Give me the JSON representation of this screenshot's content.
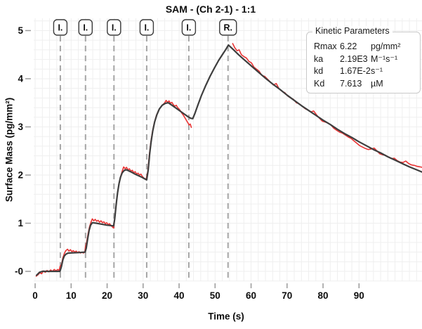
{
  "title": "SAM -  (Ch 2-1) - 1:1",
  "kinetic_parameters": {
    "title": "Kinetic Parameters",
    "rows": [
      {
        "label": "Rmax",
        "value": "6.22",
        "unit": "pg/mm²"
      },
      {
        "label": "ka",
        "value": "2.19E3",
        "unit": "M⁻¹s⁻¹"
      },
      {
        "label": "kd",
        "value": "1.67E-2",
        "unit": "s⁻¹"
      },
      {
        "label": "Kd",
        "value": "7.613",
        "unit": "µM"
      }
    ]
  },
  "chart_data": {
    "type": "line",
    "title": "SAM -  (Ch 2-1) - 1:1",
    "xlabel": "Time (s)",
    "ylabel": "Surface Mass (pg/mm²)",
    "xlim": [
      -0.4,
      107.5
    ],
    "ylim": [
      -0.204,
      5.255
    ],
    "x_ticks": [
      0,
      10,
      20,
      30,
      40,
      50,
      60,
      70,
      80,
      90
    ],
    "y_ticks": [
      {
        "value": 0,
        "label": "-0"
      },
      {
        "value": 1,
        "label": "1"
      },
      {
        "value": 2,
        "label": "2"
      },
      {
        "value": 3,
        "label": "3"
      },
      {
        "value": 4,
        "label": "4"
      },
      {
        "value": 5,
        "label": "5"
      }
    ],
    "grid": {
      "x_step": 2,
      "y_step": 0.2,
      "color": "#efefef",
      "on": true
    },
    "events": [
      {
        "label": "I.",
        "time": 7.0
      },
      {
        "label": "I.",
        "time": 14.0
      },
      {
        "label": "I.",
        "time": 21.9
      },
      {
        "label": "I.",
        "time": 31.0
      },
      {
        "label": "I.",
        "time": 42.7
      },
      {
        "label": "R.",
        "time": 53.6
      }
    ],
    "event_line_color": "#a6a6a6",
    "series": [
      {
        "name": "measured",
        "color": "#e93434",
        "width": 1.6,
        "segments": [
          [
            [
              0.3,
              -0.1
            ],
            [
              0.8,
              -0.07
            ],
            [
              1.3,
              -0.03
            ],
            [
              1.8,
              -0.05
            ],
            [
              2.3,
              0.01
            ],
            [
              2.8,
              -0.02
            ],
            [
              3.3,
              0.02
            ],
            [
              3.8,
              -0.01
            ],
            [
              4.3,
              0.03
            ],
            [
              4.8,
              0.0
            ],
            [
              5.3,
              0.04
            ],
            [
              5.8,
              0.01
            ],
            [
              6.3,
              0.04
            ],
            [
              6.7,
              0.02
            ],
            [
              6.9,
              0.1
            ],
            [
              7.3,
              0.14
            ],
            [
              7.7,
              0.28
            ],
            [
              8.1,
              0.37
            ],
            [
              8.5,
              0.43
            ],
            [
              9.0,
              0.46
            ],
            [
              9.4,
              0.42
            ],
            [
              9.8,
              0.45
            ],
            [
              10.2,
              0.41
            ],
            [
              10.6,
              0.43
            ],
            [
              11.0,
              0.4
            ],
            [
              11.4,
              0.42
            ],
            [
              11.8,
              0.39
            ],
            [
              12.2,
              0.41
            ],
            [
              12.6,
              0.38
            ],
            [
              13.0,
              0.4
            ],
            [
              13.4,
              0.38
            ],
            [
              13.8,
              0.41
            ],
            [
              14.0,
              0.52
            ],
            [
              14.3,
              0.6
            ],
            [
              14.7,
              0.78
            ],
            [
              15.1,
              0.92
            ],
            [
              15.5,
              1.02
            ],
            [
              15.9,
              1.09
            ],
            [
              16.3,
              1.05
            ],
            [
              16.7,
              1.08
            ],
            [
              17.1,
              1.04
            ],
            [
              17.5,
              1.06
            ],
            [
              17.9,
              1.02
            ],
            [
              18.3,
              1.05
            ],
            [
              18.7,
              1.01
            ],
            [
              19.1,
              1.03
            ],
            [
              19.5,
              0.99
            ],
            [
              19.9,
              1.01
            ],
            [
              20.3,
              0.97
            ],
            [
              20.7,
              0.99
            ],
            [
              21.1,
              0.95
            ],
            [
              21.5,
              0.92
            ],
            [
              21.8,
              0.9
            ],
            [
              21.95,
              0.98
            ],
            [
              22.2,
              1.15
            ],
            [
              22.6,
              1.45
            ],
            [
              23.0,
              1.68
            ],
            [
              23.4,
              1.86
            ],
            [
              23.8,
              1.98
            ],
            [
              24.2,
              2.08
            ],
            [
              24.6,
              2.17
            ],
            [
              25.0,
              2.13
            ],
            [
              25.4,
              2.16
            ],
            [
              25.8,
              2.11
            ],
            [
              26.2,
              2.13
            ],
            [
              26.6,
              2.08
            ],
            [
              27.0,
              2.1
            ],
            [
              27.4,
              2.05
            ],
            [
              27.8,
              2.07
            ],
            [
              28.2,
              2.02
            ],
            [
              28.6,
              2.04
            ],
            [
              29.0,
              2.0
            ],
            [
              29.4,
              2.02
            ],
            [
              29.8,
              1.97
            ],
            [
              30.2,
              1.94
            ],
            [
              30.6,
              1.91
            ],
            [
              30.9,
              1.93
            ],
            [
              31.3,
              2.08
            ],
            [
              31.7,
              2.4
            ],
            [
              32.1,
              2.66
            ],
            [
              32.6,
              2.9
            ],
            [
              33.1,
              3.08
            ],
            [
              33.7,
              3.24
            ],
            [
              34.4,
              3.36
            ],
            [
              35.2,
              3.44
            ],
            [
              36.0,
              3.5
            ],
            [
              36.4,
              3.55
            ],
            [
              36.8,
              3.51
            ],
            [
              37.2,
              3.54
            ],
            [
              37.6,
              3.49
            ],
            [
              38.0,
              3.51
            ],
            [
              38.4,
              3.46
            ],
            [
              38.8,
              3.43
            ],
            [
              39.2,
              3.45
            ],
            [
              39.6,
              3.4
            ],
            [
              40.0,
              3.37
            ],
            [
              40.4,
              3.33
            ],
            [
              40.8,
              3.28
            ],
            [
              41.2,
              3.24
            ],
            [
              41.6,
              3.19
            ],
            [
              42.0,
              3.14
            ],
            [
              42.4,
              3.09
            ],
            [
              42.8,
              3.04
            ],
            [
              43.1,
              3.06
            ],
            [
              43.4,
              2.99
            ]
          ],
          [
            [
              54.9,
              4.73
            ],
            [
              55.5,
              4.64
            ],
            [
              56.1,
              4.58
            ],
            [
              56.7,
              4.6
            ],
            [
              57.3,
              4.5
            ],
            [
              58.0,
              4.46
            ],
            [
              58.7,
              4.43
            ],
            [
              59.4,
              4.36
            ],
            [
              60.1,
              4.33
            ],
            [
              60.8,
              4.24
            ],
            [
              61.5,
              4.2
            ],
            [
              62.2,
              4.16
            ],
            [
              63.0,
              4.07
            ],
            [
              63.8,
              4.05
            ],
            [
              64.6,
              3.99
            ],
            [
              65.4,
              3.93
            ],
            [
              66.2,
              3.87
            ],
            [
              67.0,
              3.9
            ],
            [
              67.8,
              3.79
            ],
            [
              68.6,
              3.74
            ],
            [
              69.4,
              3.71
            ],
            [
              70.2,
              3.64
            ],
            [
              71.0,
              3.6
            ],
            [
              71.8,
              3.57
            ],
            [
              72.6,
              3.5
            ],
            [
              73.4,
              3.48
            ],
            [
              74.2,
              3.43
            ],
            [
              75.0,
              3.38
            ],
            [
              75.8,
              3.35
            ],
            [
              76.6,
              3.31
            ],
            [
              77.4,
              3.33
            ],
            [
              78.2,
              3.25
            ],
            [
              79.0,
              3.18
            ],
            [
              79.8,
              3.12
            ],
            [
              80.6,
              3.1
            ],
            [
              81.4,
              3.08
            ],
            [
              82.2,
              3.04
            ],
            [
              83.0,
              2.97
            ],
            [
              83.8,
              2.93
            ],
            [
              84.6,
              2.89
            ],
            [
              85.4,
              2.87
            ],
            [
              86.2,
              2.83
            ],
            [
              87.0,
              2.79
            ],
            [
              87.8,
              2.76
            ],
            [
              88.6,
              2.71
            ],
            [
              89.4,
              2.66
            ],
            [
              90.2,
              2.61
            ],
            [
              91.0,
              2.58
            ],
            [
              91.8,
              2.55
            ],
            [
              92.6,
              2.53
            ],
            [
              93.4,
              2.54
            ],
            [
              94.2,
              2.56
            ],
            [
              95.0,
              2.5
            ],
            [
              95.8,
              2.44
            ],
            [
              96.6,
              2.42
            ],
            [
              97.4,
              2.41
            ],
            [
              98.2,
              2.37
            ],
            [
              99.0,
              2.34
            ],
            [
              99.8,
              2.35
            ],
            [
              100.6,
              2.3
            ],
            [
              101.4,
              2.27
            ],
            [
              102.2,
              2.26
            ],
            [
              103.0,
              2.29
            ],
            [
              103.8,
              2.24
            ],
            [
              104.6,
              2.21
            ],
            [
              105.4,
              2.2
            ],
            [
              106.2,
              2.18
            ],
            [
              107.0,
              2.17
            ],
            [
              107.5,
              2.16
            ]
          ]
        ]
      },
      {
        "name": "fit",
        "color": "#3e3e3e",
        "width": 2.2,
        "segments": [
          [
            [
              0.4,
              -0.08
            ],
            [
              1.2,
              -0.02
            ],
            [
              2.0,
              0.0
            ],
            [
              6.9,
              0.0
            ],
            [
              7.3,
              0.1
            ],
            [
              7.7,
              0.24
            ],
            [
              8.1,
              0.32
            ],
            [
              8.6,
              0.36
            ],
            [
              9.2,
              0.38
            ],
            [
              10.5,
              0.385
            ],
            [
              12.0,
              0.39
            ],
            [
              13.9,
              0.4
            ],
            [
              14.2,
              0.48
            ],
            [
              14.6,
              0.68
            ],
            [
              15.0,
              0.85
            ],
            [
              15.4,
              0.96
            ],
            [
              15.9,
              1.01
            ],
            [
              17.0,
              1.0
            ],
            [
              18.5,
              0.98
            ],
            [
              20.0,
              0.96
            ],
            [
              21.8,
              0.945
            ],
            [
              22.1,
              1.08
            ],
            [
              22.5,
              1.38
            ],
            [
              22.9,
              1.63
            ],
            [
              23.3,
              1.82
            ],
            [
              23.7,
              1.95
            ],
            [
              24.2,
              2.05
            ],
            [
              24.8,
              2.1
            ],
            [
              25.4,
              2.11
            ],
            [
              26.5,
              2.07
            ],
            [
              28.0,
              2.01
            ],
            [
              29.5,
              1.96
            ],
            [
              31.0,
              1.9
            ],
            [
              31.4,
              2.1
            ],
            [
              31.8,
              2.42
            ],
            [
              32.2,
              2.68
            ],
            [
              32.7,
              2.92
            ],
            [
              33.2,
              3.1
            ],
            [
              33.8,
              3.25
            ],
            [
              34.5,
              3.37
            ],
            [
              35.3,
              3.45
            ],
            [
              36.2,
              3.49
            ],
            [
              37.0,
              3.5
            ],
            [
              38.2,
              3.44
            ],
            [
              39.5,
              3.37
            ],
            [
              41.0,
              3.29
            ],
            [
              42.3,
              3.22
            ],
            [
              43.2,
              3.18
            ],
            [
              43.8,
              3.17
            ],
            [
              44.4,
              3.28
            ],
            [
              45.2,
              3.45
            ],
            [
              46.2,
              3.65
            ],
            [
              47.4,
              3.86
            ],
            [
              48.6,
              4.05
            ],
            [
              49.8,
              4.22
            ],
            [
              51.0,
              4.38
            ],
            [
              52.2,
              4.52
            ],
            [
              53.0,
              4.61
            ],
            [
              53.7,
              4.7
            ],
            [
              55.0,
              4.61
            ],
            [
              56.5,
              4.5
            ],
            [
              58.0,
              4.4
            ],
            [
              60.0,
              4.27
            ],
            [
              62.0,
              4.14
            ],
            [
              64.0,
              4.01
            ],
            [
              66.0,
              3.89
            ],
            [
              68.0,
              3.78
            ],
            [
              70.0,
              3.66
            ],
            [
              72.0,
              3.55
            ],
            [
              74.0,
              3.44
            ],
            [
              76.0,
              3.34
            ],
            [
              78.0,
              3.24
            ],
            [
              80.0,
              3.14
            ],
            [
              82.0,
              3.05
            ],
            [
              84.0,
              2.95
            ],
            [
              86.0,
              2.86
            ],
            [
              88.0,
              2.78
            ],
            [
              90.0,
              2.69
            ],
            [
              92.0,
              2.61
            ],
            [
              94.0,
              2.53
            ],
            [
              96.0,
              2.46
            ],
            [
              98.0,
              2.38
            ],
            [
              100.0,
              2.31
            ],
            [
              102.0,
              2.24
            ],
            [
              104.0,
              2.17
            ],
            [
              106.0,
              2.11
            ],
            [
              107.6,
              2.06
            ]
          ]
        ]
      }
    ]
  }
}
